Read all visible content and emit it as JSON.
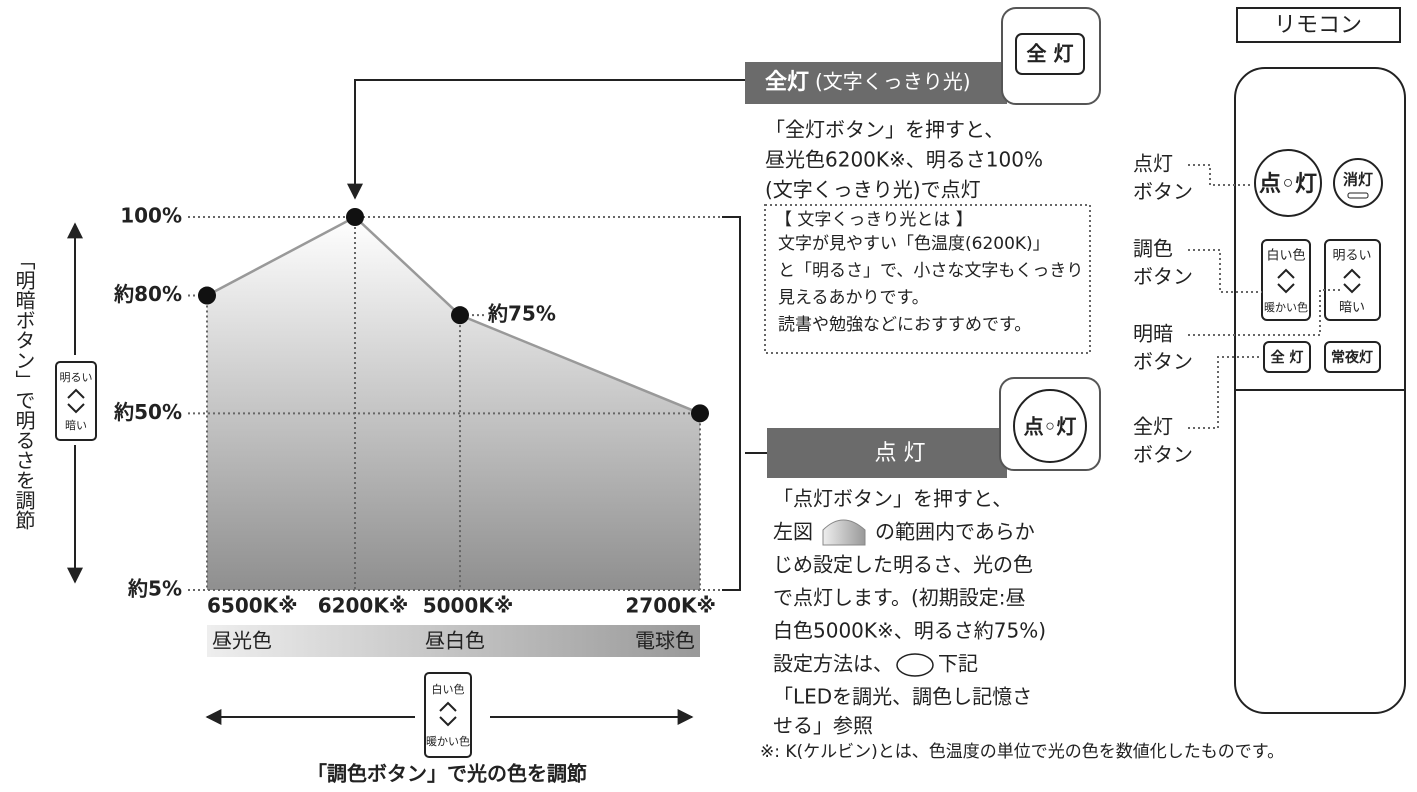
{
  "chart_data": {
    "type": "line",
    "categories": [
      "6500K※",
      "6200K※",
      "5000K※",
      "2700K※"
    ],
    "values": [
      80,
      100,
      75,
      50
    ],
    "value_labels": [
      null,
      null,
      "約75%",
      null
    ],
    "color": "#999999",
    "ylim": [
      5,
      100
    ],
    "yticks": [
      {
        "value": 100,
        "label": "100%"
      },
      {
        "value": 80,
        "label": "約80%"
      },
      {
        "value": 50,
        "label": "約50%"
      },
      {
        "value": 5,
        "label": "約5%"
      }
    ],
    "grid": true,
    "color_bands": [
      "昼光色",
      "昼白色",
      "電球色"
    ],
    "y_axis_label": "「明暗ボタン」で明るさを調節",
    "x_axis_label": "「調色ボタン」で光の色を調節",
    "brightness_button": {
      "top": "明るい",
      "bottom": "暗い"
    },
    "color_button": {
      "top": "白い色",
      "bottom": "暖かい色"
    }
  },
  "full_light": {
    "heading": "全灯",
    "subheading": "(文字くっきり光)",
    "button": "全 灯",
    "lines": [
      "「全灯ボタン」を押すと、",
      "昼光色6200K※、明るさ100%",
      "(文字くっきり光)で点灯"
    ],
    "box_title": "【 文字くっきり光とは 】",
    "box_lines": [
      "文字が見やすい「色温度(6200K)」",
      "と「明るさ」で、小さな文字もくっきり",
      "見えるあかりです。",
      "読書や勉強などにおすすめです。"
    ]
  },
  "light_on": {
    "heading": "点 灯",
    "button": "点◦灯",
    "line_1": "「点灯ボタン」を押すと、",
    "line_2": [
      "左図",
      "の範囲内であらか"
    ],
    "lines_mid": [
      "じめ設定した明るさ、光の色",
      "で点灯します。(初期設定:昼",
      "白色5000K※、明るさ約75%)"
    ],
    "line_6": [
      "設定方法は、",
      "下記"
    ],
    "lines_end": [
      "「LEDを調光、調色し記憶さ",
      "せる」参照"
    ]
  },
  "footnote": "※: K(ケルビン)とは、色温度の単位で光の色を数値化したものです。",
  "remote": {
    "title": "リモコン",
    "labels": [
      [
        "点灯",
        "ボタン"
      ],
      [
        "調色",
        "ボタン"
      ],
      [
        "明暗",
        "ボタン"
      ],
      [
        "全灯",
        "ボタン"
      ]
    ],
    "on_button": "点◦灯",
    "off_button": "消灯",
    "color_button": {
      "top": "白い色",
      "bottom": "暖かい色"
    },
    "brightness_button": {
      "top": "明るい",
      "bottom": "暗い"
    },
    "full_button": "全 灯",
    "night_button": "常夜灯"
  }
}
